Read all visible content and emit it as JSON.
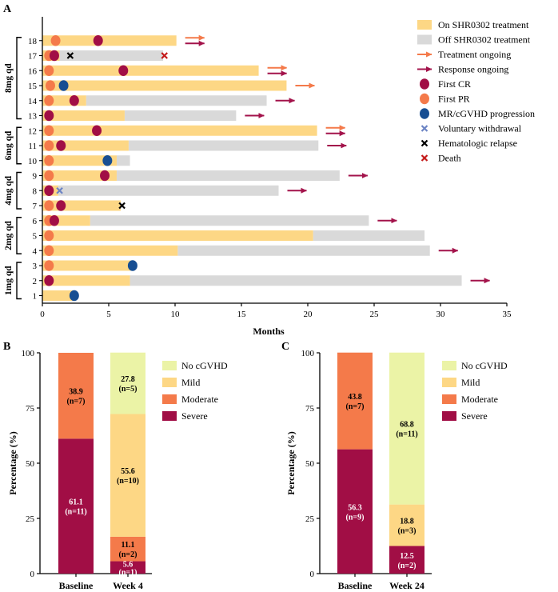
{
  "chart_data": [
    {
      "panel": "A",
      "type": "swimmer",
      "xlabel": "Months",
      "xlim": [
        0,
        35
      ],
      "xticks": [
        0,
        5,
        10,
        15,
        20,
        25,
        30,
        35
      ],
      "groups": [
        {
          "label": "1mg qd",
          "patients": [
            1,
            2,
            3
          ]
        },
        {
          "label": "2mg qd",
          "patients": [
            4,
            5,
            6
          ]
        },
        {
          "label": "4mg qd",
          "patients": [
            7,
            8,
            9
          ]
        },
        {
          "label": "6mg qd",
          "patients": [
            10,
            11,
            12
          ]
        },
        {
          "label": "8mg qd",
          "patients": [
            13,
            14,
            15,
            16,
            17,
            18
          ]
        }
      ],
      "patients": [
        {
          "id": 1,
          "on": 2.4,
          "off": 0,
          "events": [
            {
              "type": "progression",
              "t": 2.4
            }
          ],
          "arrows": []
        },
        {
          "id": 2,
          "on": 6.6,
          "off": 31.6,
          "events": [
            {
              "type": "cr",
              "t": 0.5
            }
          ],
          "arrows": [
            "response"
          ]
        },
        {
          "id": 3,
          "on": 6.8,
          "off": 0,
          "events": [
            {
              "type": "pr",
              "t": 0.5
            },
            {
              "type": "progression",
              "t": 6.8
            }
          ],
          "arrows": []
        },
        {
          "id": 4,
          "on": 10.2,
          "off": 29.2,
          "events": [
            {
              "type": "pr",
              "t": 0.5
            }
          ],
          "arrows": [
            "response"
          ]
        },
        {
          "id": 5,
          "on": 20.4,
          "off": 28.8,
          "events": [
            {
              "type": "pr",
              "t": 0.5
            }
          ],
          "arrows": []
        },
        {
          "id": 6,
          "on": 3.6,
          "off": 24.6,
          "events": [
            {
              "type": "pr",
              "t": 0.5
            },
            {
              "type": "cr",
              "t": 0.9
            }
          ],
          "arrows": [
            "response"
          ]
        },
        {
          "id": 7,
          "on": 5.9,
          "off": 0,
          "events": [
            {
              "type": "pr",
              "t": 0.5
            },
            {
              "type": "cr",
              "t": 1.4
            },
            {
              "type": "relapse",
              "t": 6.0
            }
          ],
          "arrows": []
        },
        {
          "id": 8,
          "on": 1.2,
          "off": 17.8,
          "events": [
            {
              "type": "cr",
              "t": 0.5
            },
            {
              "type": "withdrawal",
              "t": 1.3
            }
          ],
          "arrows": [
            "response"
          ]
        },
        {
          "id": 9,
          "on": 5.6,
          "off": 22.4,
          "events": [
            {
              "type": "pr",
              "t": 0.5
            },
            {
              "type": "cr",
              "t": 4.7
            }
          ],
          "arrows": [
            "response"
          ]
        },
        {
          "id": 10,
          "on": 5.6,
          "off": 6.6,
          "events": [
            {
              "type": "pr",
              "t": 0.5
            },
            {
              "type": "progression",
              "t": 4.9
            }
          ],
          "arrows": []
        },
        {
          "id": 11,
          "on": 6.5,
          "off": 20.8,
          "events": [
            {
              "type": "pr",
              "t": 0.5
            },
            {
              "type": "cr",
              "t": 1.4
            }
          ],
          "arrows": [
            "response"
          ]
        },
        {
          "id": 12,
          "on": 20.7,
          "off": 0,
          "events": [
            {
              "type": "pr",
              "t": 0.5
            },
            {
              "type": "cr",
              "t": 4.1
            }
          ],
          "arrows": [
            "treatment",
            "response"
          ]
        },
        {
          "id": 13,
          "on": 6.2,
          "off": 14.6,
          "events": [
            {
              "type": "cr",
              "t": 0.5
            }
          ],
          "arrows": [
            "response"
          ]
        },
        {
          "id": 14,
          "on": 3.3,
          "off": 16.9,
          "events": [
            {
              "type": "pr",
              "t": 0.5
            },
            {
              "type": "cr",
              "t": 2.4
            }
          ],
          "arrows": [
            "response"
          ]
        },
        {
          "id": 15,
          "on": 18.4,
          "off": 0,
          "events": [
            {
              "type": "pr",
              "t": 0.6
            },
            {
              "type": "progression",
              "t": 1.6
            }
          ],
          "arrows": [
            "treatment"
          ]
        },
        {
          "id": 16,
          "on": 16.3,
          "off": 0,
          "events": [
            {
              "type": "pr",
              "t": 0.5
            },
            {
              "type": "cr",
              "t": 6.1
            }
          ],
          "arrows": [
            "treatment",
            "response"
          ]
        },
        {
          "id": 17,
          "on": 1.3,
          "off": 9.1,
          "events": [
            {
              "type": "pr",
              "t": 0.5
            },
            {
              "type": "cr",
              "t": 0.9
            },
            {
              "type": "relapse",
              "t": 2.1
            },
            {
              "type": "death",
              "t": 9.2
            }
          ],
          "arrows": []
        },
        {
          "id": 18,
          "on": 10.1,
          "off": 0,
          "events": [
            {
              "type": "pr",
              "t": 1.0
            },
            {
              "type": "cr",
              "t": 4.2
            }
          ],
          "arrows": [
            "treatment",
            "response"
          ]
        }
      ],
      "legend": [
        {
          "key": "on",
          "label": "On SHR0302 treatment"
        },
        {
          "key": "off",
          "label": "Off SHR0302 treatment"
        },
        {
          "key": "treatment_arrow",
          "label": "Treatment ongoing"
        },
        {
          "key": "response_arrow",
          "label": "Response ongoing"
        },
        {
          "key": "cr",
          "label": "First CR"
        },
        {
          "key": "pr",
          "label": "First PR"
        },
        {
          "key": "progression",
          "label": "MR/cGVHD progression"
        },
        {
          "key": "withdrawal",
          "label": "Voluntary withdrawal"
        },
        {
          "key": "relapse",
          "label": "Hematologic relapse"
        },
        {
          "key": "death",
          "label": "Death"
        }
      ]
    },
    {
      "panel": "B",
      "type": "stacked_bar",
      "ylabel": "Percentage (%)",
      "ylim": [
        0,
        100
      ],
      "yticks": [
        0,
        25,
        50,
        75,
        100
      ],
      "categories": [
        "Baseline",
        "Week 4"
      ],
      "series": [
        {
          "name": "Severe",
          "values": [
            61.1,
            5.6
          ],
          "labels": [
            "61.1",
            "5.6"
          ],
          "counts": [
            "(n=11)",
            "(n=1)"
          ]
        },
        {
          "name": "Moderate",
          "values": [
            38.9,
            11.1
          ],
          "labels": [
            "38.9",
            "11.1"
          ],
          "counts": [
            "(n=7)",
            "(n=2)"
          ]
        },
        {
          "name": "Mild",
          "values": [
            0,
            55.6
          ],
          "labels": [
            "",
            "55.6"
          ],
          "counts": [
            "",
            "(n=10)"
          ]
        },
        {
          "name": "No cGVHD",
          "values": [
            0,
            27.8
          ],
          "labels": [
            "",
            "27.8"
          ],
          "counts": [
            "",
            "(n=5)"
          ]
        }
      ]
    },
    {
      "panel": "C",
      "type": "stacked_bar",
      "ylabel": "Percentage (%)",
      "ylim": [
        0,
        100
      ],
      "yticks": [
        0,
        25,
        50,
        75,
        100
      ],
      "categories": [
        "Baseline",
        "Week 24"
      ],
      "series": [
        {
          "name": "Severe",
          "values": [
            56.3,
            12.5
          ],
          "labels": [
            "56.3",
            "12.5"
          ],
          "counts": [
            "(n=9)",
            "(n=2)"
          ]
        },
        {
          "name": "Moderate",
          "values": [
            43.8,
            0
          ],
          "labels": [
            "43.8",
            ""
          ],
          "counts": [
            "(n=7)",
            ""
          ]
        },
        {
          "name": "Mild",
          "values": [
            0,
            18.8
          ],
          "labels": [
            "",
            "18.8"
          ],
          "counts": [
            "",
            "(n=3)"
          ]
        },
        {
          "name": "No cGVHD",
          "values": [
            0,
            68.8
          ],
          "labels": [
            "",
            "68.8"
          ],
          "counts": [
            "",
            "(n=11)"
          ]
        }
      ]
    }
  ],
  "colors": {
    "on": "#fdd785",
    "off": "#d9d9d9",
    "treatment_arrow": "#f47a4a",
    "response_arrow": "#a3134b",
    "cr": "#a10e45",
    "pr": "#f47a4a",
    "progression": "#174e92",
    "withdrawal": "#6c84c4",
    "relapse": "#000000",
    "death": "#c41a1a",
    "severe": "#a10e45",
    "moderate": "#f47a4a",
    "mild": "#fdd785",
    "no_cgvhd": "#ebf3a6"
  }
}
